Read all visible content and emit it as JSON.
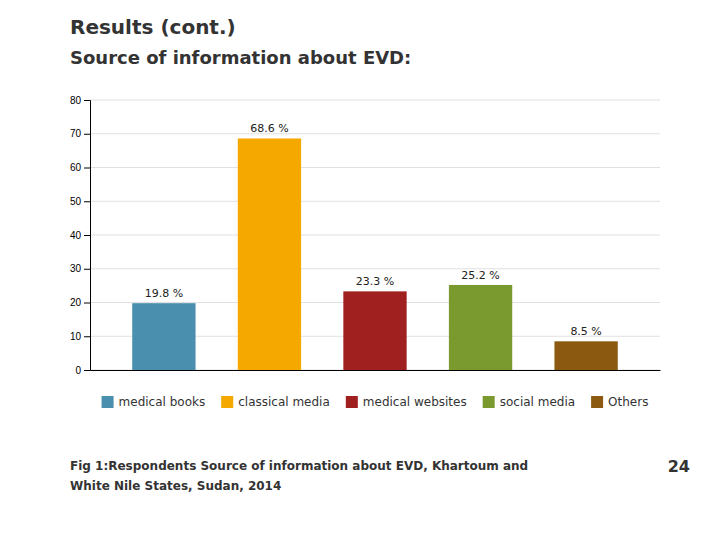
{
  "chart_data": {
    "type": "bar",
    "title": "Results (cont.)",
    "subtitle": "Source of information about EVD:",
    "categories": [
      "medical books",
      "classical media",
      "medical websites",
      "social media",
      "Others"
    ],
    "values": [
      19.8,
      68.6,
      23.3,
      25.2,
      8.5
    ],
    "value_labels": [
      "19.8 %",
      "68.6 %",
      "23.3 %",
      "25.2 %",
      "8.5 %"
    ],
    "colors": [
      "#4A8FAD",
      "#F5A800",
      "#A02020",
      "#7A9A30",
      "#8B5A10"
    ],
    "ylim": [
      0,
      80
    ],
    "yticks": [
      0,
      10,
      20,
      30,
      40,
      50,
      60,
      70,
      80
    ],
    "grid": true,
    "data_labels": true,
    "tick_labels": "y",
    "legend": "bottom",
    "annotations": [
      "Fig 1:Respondents Source of information about EVD, Khartoum and",
      "White Nile States, Sudan, 2014",
      "24"
    ]
  }
}
